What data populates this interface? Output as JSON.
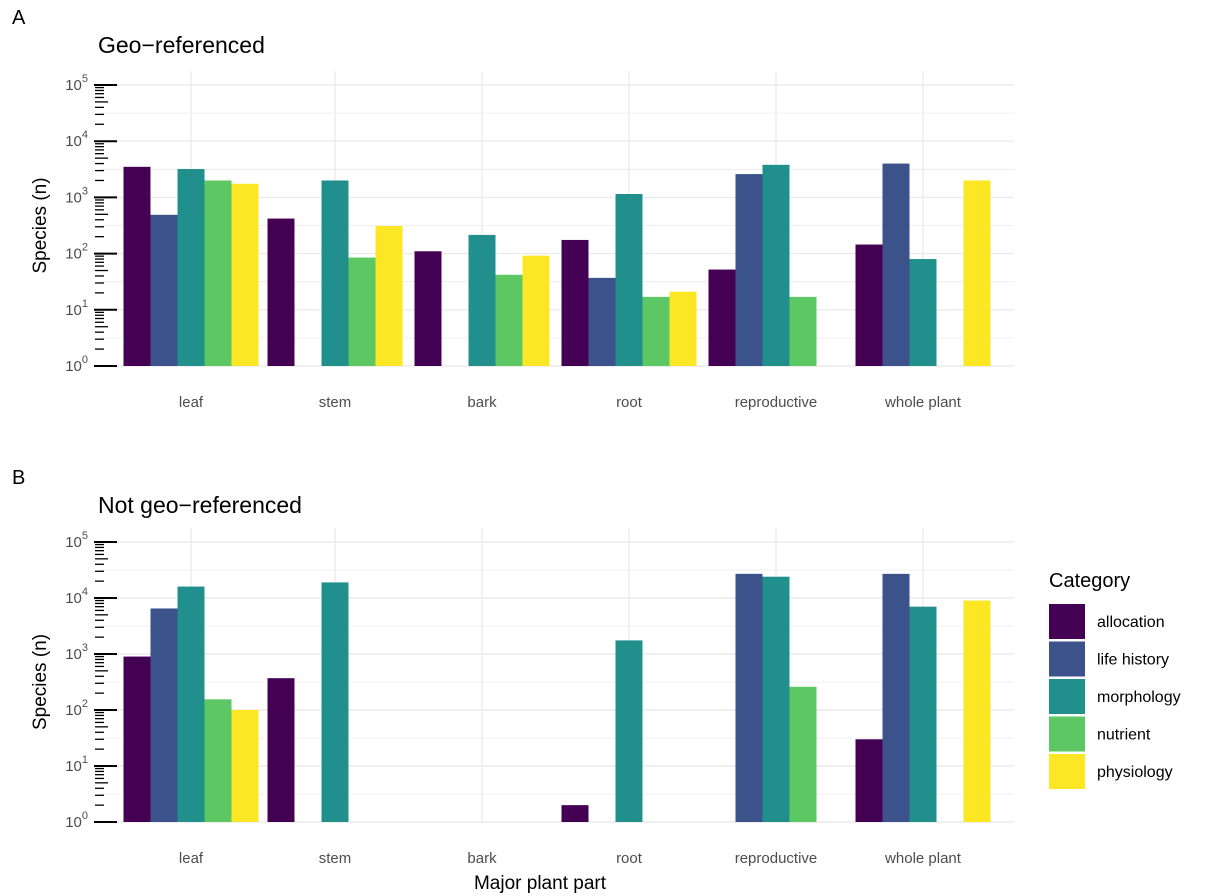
{
  "chart_data": [
    {
      "type": "bar",
      "panel_letter": "A",
      "title": "Geo−referenced",
      "xlabel": "",
      "ylabel": "Species (n)",
      "yscale": "log10",
      "ylim": [
        1,
        100000
      ],
      "y_tick_labels": [
        "10^0",
        "10^1",
        "10^2",
        "10^3",
        "10^4",
        "10^5"
      ],
      "categories": [
        "leaf",
        "stem",
        "bark",
        "root",
        "reproductive",
        "whole plant"
      ],
      "series": [
        {
          "name": "allocation",
          "values": [
            3500,
            420,
            110,
            175,
            52,
            145
          ]
        },
        {
          "name": "life history",
          "values": [
            490,
            null,
            null,
            37,
            2600,
            4000
          ]
        },
        {
          "name": "morphology",
          "values": [
            3200,
            2000,
            215,
            1150,
            3800,
            80
          ]
        },
        {
          "name": "nutrient",
          "values": [
            2000,
            85,
            42,
            17,
            17,
            null
          ]
        },
        {
          "name": "physiology",
          "values": [
            1750,
            310,
            92,
            21,
            null,
            2000
          ]
        }
      ],
      "grid": true,
      "legend": "none"
    },
    {
      "type": "bar",
      "panel_letter": "B",
      "title": "Not geo−referenced",
      "xlabel": "Major plant part",
      "ylabel": "Species (n)",
      "yscale": "log10",
      "ylim": [
        1,
        100000
      ],
      "y_tick_labels": [
        "10^0",
        "10^1",
        "10^2",
        "10^3",
        "10^4",
        "10^5"
      ],
      "categories": [
        "leaf",
        "stem",
        "bark",
        "root",
        "reproductive",
        "whole plant"
      ],
      "series": [
        {
          "name": "allocation",
          "values": [
            900,
            370,
            null,
            2,
            null,
            30
          ]
        },
        {
          "name": "life history",
          "values": [
            6500,
            null,
            null,
            null,
            27000,
            27000
          ]
        },
        {
          "name": "morphology",
          "values": [
            16000,
            19000,
            null,
            1750,
            24000,
            7000
          ]
        },
        {
          "name": "nutrient",
          "values": [
            155,
            null,
            null,
            null,
            260,
            null
          ]
        },
        {
          "name": "physiology",
          "values": [
            100,
            null,
            null,
            null,
            null,
            9000
          ]
        }
      ],
      "grid": true,
      "legend": "right"
    }
  ],
  "legend": {
    "title": "Category",
    "items": [
      {
        "name": "allocation",
        "color": "#440154"
      },
      {
        "name": "life history",
        "color": "#3B528B"
      },
      {
        "name": "morphology",
        "color": "#21908C"
      },
      {
        "name": "nutrient",
        "color": "#5DC863"
      },
      {
        "name": "physiology",
        "color": "#FDE725"
      }
    ]
  },
  "colors": {
    "grid": "#ebebeb",
    "tick_text": "#4d4d4d"
  }
}
